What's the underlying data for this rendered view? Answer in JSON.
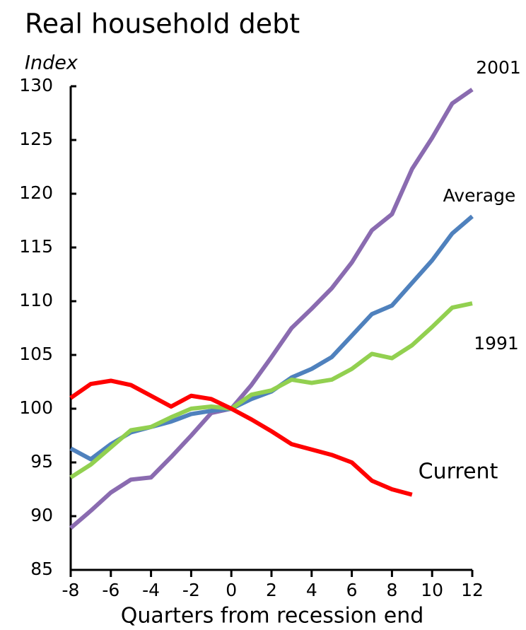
{
  "chart_data": {
    "type": "line",
    "title": "Real household debt",
    "y_axis_label": "Index",
    "x_axis_label": "Quarters from recession end",
    "x": [
      -8,
      -7,
      -6,
      -5,
      -4,
      -3,
      -2,
      -1,
      0,
      1,
      2,
      3,
      4,
      5,
      6,
      7,
      8,
      9,
      10,
      11,
      12
    ],
    "series": [
      {
        "name": "2001",
        "color": "#8a6bb0",
        "values": [
          88.9,
          90.5,
          92.2,
          93.4,
          93.6,
          95.5,
          97.5,
          99.6,
          100,
          102.2,
          104.8,
          107.5,
          109.3,
          111.2,
          113.6,
          116.6,
          118.1,
          122.3,
          125.2,
          128.4,
          129.7
        ]
      },
      {
        "name": "Average",
        "color": "#4f81bd",
        "values": [
          96.3,
          95.3,
          96.7,
          97.8,
          98.3,
          98.8,
          99.5,
          99.8,
          100,
          100.9,
          101.6,
          102.9,
          103.7,
          104.8,
          106.8,
          108.8,
          109.6,
          111.7,
          113.8,
          116.3,
          117.9
        ]
      },
      {
        "name": "1991",
        "color": "#92d050",
        "values": [
          93.6,
          94.8,
          96.4,
          98.0,
          98.3,
          99.2,
          100.0,
          100.2,
          100,
          101.3,
          101.7,
          102.7,
          102.4,
          102.7,
          103.7,
          105.1,
          104.7,
          105.9,
          107.6,
          109.4,
          109.8
        ]
      },
      {
        "name": "Current",
        "color": "#ff0000",
        "values": [
          101.0,
          102.3,
          102.6,
          102.2,
          101.2,
          100.2,
          101.2,
          100.9,
          100,
          99.0,
          97.9,
          96.7,
          96.2,
          95.7,
          95.0,
          93.3,
          92.5,
          92.0,
          null,
          null,
          null
        ]
      }
    ],
    "xlim": [
      -8,
      12
    ],
    "ylim": [
      85,
      130
    ],
    "xticks": [
      -8,
      -6,
      -4,
      -2,
      0,
      2,
      4,
      6,
      8,
      10,
      12
    ],
    "yticks": [
      85,
      90,
      95,
      100,
      105,
      110,
      115,
      120,
      125,
      130
    ]
  }
}
